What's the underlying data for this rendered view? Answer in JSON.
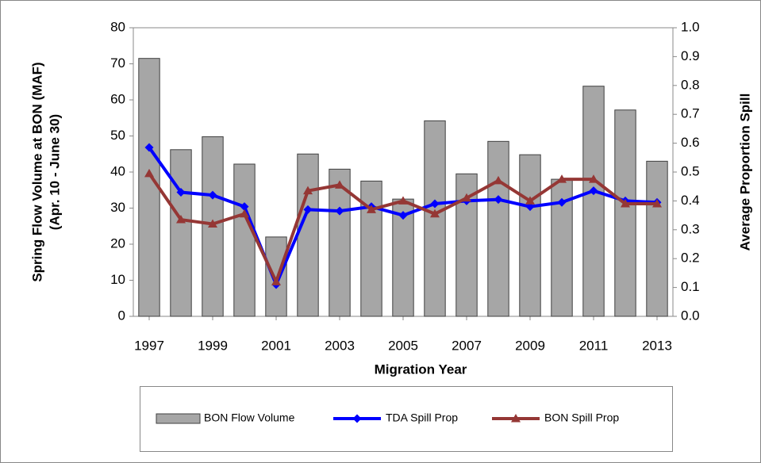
{
  "chart_data": {
    "type": "bar",
    "xlabel": "Migration Year",
    "ylabel": [
      "Spring Flow Volume at BON (MAF)",
      "(Apr. 10 - June 30)"
    ],
    "y2label": "Average Proportion Spill",
    "x": [
      1997,
      1998,
      1999,
      2000,
      2001,
      2002,
      2003,
      2004,
      2005,
      2006,
      2007,
      2008,
      2009,
      2010,
      2011,
      2012,
      2013
    ],
    "xlim": [
      1996.5,
      2013.5
    ],
    "xticks": [
      1997,
      1999,
      2001,
      2003,
      2005,
      2007,
      2009,
      2011,
      2013
    ],
    "ylim": [
      0,
      80
    ],
    "yticks": [
      0,
      10,
      20,
      30,
      40,
      50,
      60,
      70,
      80
    ],
    "y2lim": [
      0,
      1
    ],
    "y2ticks": [
      {
        "value": 0,
        "label": "0.0"
      },
      0.1,
      0.2,
      0.3,
      0.4,
      0.5,
      0.6,
      0.7,
      0.8,
      0.9,
      {
        "value": 1,
        "label": "1.0"
      }
    ],
    "legend": "bottom",
    "series": [
      {
        "name": "BON Flow Volume",
        "type": "bar",
        "color": "#a6a6a6",
        "axis": "y",
        "values": [
          71.5,
          46.2,
          49.8,
          42.2,
          22,
          45,
          40.8,
          37.5,
          32.5,
          54.2,
          39.5,
          48.5,
          44.8,
          38,
          63.8,
          57.2,
          43
        ]
      },
      {
        "name": "TDA Spill Prop",
        "type": "line",
        "marker": "diamond",
        "color": "#0000ff",
        "axis": "y2",
        "values": [
          0.585,
          0.43,
          0.42,
          0.38,
          0.11,
          0.37,
          0.365,
          0.38,
          0.35,
          0.39,
          0.4,
          0.405,
          0.38,
          0.395,
          0.435,
          0.4,
          0.395
        ]
      },
      {
        "name": "BON Spill Prop",
        "type": "line",
        "marker": "triangle",
        "color": "#953735",
        "axis": "y2",
        "values": [
          0.495,
          0.335,
          0.32,
          0.355,
          0.12,
          0.435,
          0.455,
          0.37,
          0.4,
          0.355,
          0.41,
          0.47,
          0.4,
          0.475,
          0.475,
          0.39,
          0.39
        ]
      }
    ]
  }
}
